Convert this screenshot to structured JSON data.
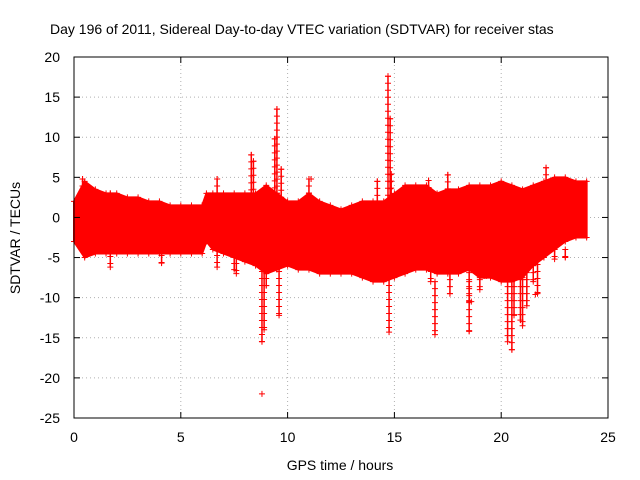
{
  "chart_data": {
    "type": "scatter",
    "title": "Day 196 of 2011, Sidereal Day-to-day VTEC variation (SDTVAR) for receiver stas",
    "xlabel": "GPS time / hours",
    "ylabel": "SDTVAR / TECUs",
    "xlim": [
      0,
      25
    ],
    "ylim": [
      -25,
      20
    ],
    "grid": true,
    "marker": "+",
    "color": "#ff0000",
    "x_ticks": [
      0,
      5,
      10,
      15,
      20,
      25
    ],
    "y_ticks": [
      -25,
      -20,
      -15,
      -10,
      -5,
      0,
      5,
      10,
      15,
      20
    ],
    "band": {
      "x": [
        0.0,
        0.5,
        1.0,
        1.5,
        2.0,
        2.5,
        3.0,
        3.5,
        4.0,
        4.5,
        5.0,
        5.5,
        6.0,
        6.2,
        6.5,
        7.0,
        7.5,
        8.0,
        8.5,
        9.0,
        9.5,
        10.0,
        10.5,
        11.0,
        11.5,
        12.0,
        12.5,
        13.0,
        13.5,
        14.0,
        14.5,
        15.0,
        15.5,
        16.0,
        16.5,
        17.0,
        17.5,
        18.0,
        18.5,
        19.0,
        19.5,
        20.0,
        20.5,
        21.0,
        21.5,
        22.0,
        22.5,
        23.0,
        23.5,
        24.0
      ],
      "upper": [
        2.0,
        4.5,
        3.5,
        3.0,
        3.0,
        2.5,
        2.5,
        2.0,
        2.0,
        1.5,
        1.5,
        1.5,
        1.5,
        3.0,
        3.0,
        3.0,
        3.0,
        3.0,
        3.0,
        4.0,
        3.0,
        2.0,
        2.0,
        3.0,
        2.0,
        1.5,
        1.0,
        1.5,
        2.0,
        2.0,
        2.0,
        3.0,
        4.0,
        4.0,
        4.0,
        3.0,
        3.5,
        3.5,
        4.0,
        4.0,
        4.0,
        4.5,
        4.0,
        3.5,
        4.0,
        4.5,
        5.0,
        5.0,
        4.5,
        4.5
      ],
      "lower": [
        -3.0,
        -5.0,
        -4.5,
        -4.5,
        -4.5,
        -4.5,
        -4.5,
        -4.5,
        -4.5,
        -4.5,
        -4.5,
        -4.5,
        -4.5,
        -3.0,
        -4.0,
        -4.5,
        -5.0,
        -5.5,
        -6.0,
        -7.0,
        -6.5,
        -6.0,
        -6.5,
        -6.5,
        -7.0,
        -7.0,
        -7.0,
        -7.0,
        -7.5,
        -8.0,
        -8.0,
        -7.5,
        -7.0,
        -6.5,
        -6.5,
        -7.0,
        -7.0,
        -7.0,
        -6.5,
        -7.5,
        -7.5,
        -8.0,
        -8.0,
        -7.5,
        -6.0,
        -5.0,
        -4.0,
        -3.0,
        -2.5,
        -2.5
      ]
    },
    "spikes": [
      {
        "x": 0.4,
        "y": [
          1,
          4.8
        ]
      },
      {
        "x": 1.7,
        "y": [
          -1,
          3.0
        ]
      },
      {
        "x": 1.7,
        "y": [
          -4,
          -6.2
        ]
      },
      {
        "x": 4.1,
        "y": [
          -3,
          -5.7
        ]
      },
      {
        "x": 6.7,
        "y": [
          1,
          4.8
        ]
      },
      {
        "x": 6.7,
        "y": [
          -3,
          -6.2
        ]
      },
      {
        "x": 7.5,
        "y": [
          -4,
          -6.5
        ]
      },
      {
        "x": 7.6,
        "y": [
          -4,
          -7.0
        ]
      },
      {
        "x": 8.3,
        "y": [
          2,
          7.8
        ]
      },
      {
        "x": 8.4,
        "y": [
          2,
          7.0
        ]
      },
      {
        "x": 8.8,
        "y": [
          -5,
          -15.5
        ]
      },
      {
        "x": 8.9,
        "y": [
          -5,
          -14.0
        ]
      },
      {
        "x": 9.0,
        "y": [
          -5,
          -8.5
        ]
      },
      {
        "x": 9.4,
        "y": [
          1,
          9.8
        ]
      },
      {
        "x": 9.5,
        "y": [
          1,
          13.5
        ]
      },
      {
        "x": 9.6,
        "y": [
          -5,
          -12.2
        ]
      },
      {
        "x": 9.7,
        "y": [
          1,
          6.0
        ]
      },
      {
        "x": 11.0,
        "y": [
          2,
          4.8
        ]
      },
      {
        "x": 14.2,
        "y": [
          1,
          4.5
        ]
      },
      {
        "x": 14.7,
        "y": [
          1,
          17.6
        ]
      },
      {
        "x": 14.75,
        "y": [
          -5,
          -14.3
        ]
      },
      {
        "x": 14.8,
        "y": [
          1,
          12.3
        ]
      },
      {
        "x": 14.85,
        "y": [
          1,
          5.4
        ]
      },
      {
        "x": 16.1,
        "y": [
          1,
          3.6
        ]
      },
      {
        "x": 16.6,
        "y": [
          1,
          4.6
        ]
      },
      {
        "x": 16.7,
        "y": [
          -5,
          -8.0
        ]
      },
      {
        "x": 16.9,
        "y": [
          -8,
          -14.6
        ]
      },
      {
        "x": 17.5,
        "y": [
          1,
          5.3
        ]
      },
      {
        "x": 17.6,
        "y": [
          -6,
          -9.5
        ]
      },
      {
        "x": 18.5,
        "y": [
          -6,
          -10.5
        ]
      },
      {
        "x": 18.5,
        "y": [
          -8,
          -14.2
        ]
      },
      {
        "x": 19.0,
        "y": [
          -6,
          -9.0
        ]
      },
      {
        "x": 19.2,
        "y": [
          -6,
          -7.3
        ]
      },
      {
        "x": 20.3,
        "y": [
          -6,
          -15.5
        ]
      },
      {
        "x": 20.5,
        "y": [
          -6,
          -16.5
        ]
      },
      {
        "x": 20.6,
        "y": [
          -6,
          -12.2
        ]
      },
      {
        "x": 20.9,
        "y": [
          -6,
          -12.8
        ]
      },
      {
        "x": 21.0,
        "y": [
          -6,
          -13.5
        ]
      },
      {
        "x": 21.2,
        "y": [
          -6,
          -11.0
        ]
      },
      {
        "x": 21.5,
        "y": [
          -6,
          -8.0
        ]
      },
      {
        "x": 21.7,
        "y": [
          -5,
          -9.5
        ]
      },
      {
        "x": 22.1,
        "y": [
          2,
          6.2
        ]
      },
      {
        "x": 22.5,
        "y": [
          -4,
          -5.2
        ]
      },
      {
        "x": 23.0,
        "y": [
          -4,
          -5.0
        ]
      }
    ],
    "outliers": [
      {
        "x": 8.8,
        "y": -22
      },
      {
        "x": 21.6,
        "y": -9.6
      },
      {
        "x": 18.6,
        "y": -10.5
      },
      {
        "x": 19.3,
        "y": -7.3
      },
      {
        "x": 11.1,
        "y": 4.8
      }
    ]
  }
}
